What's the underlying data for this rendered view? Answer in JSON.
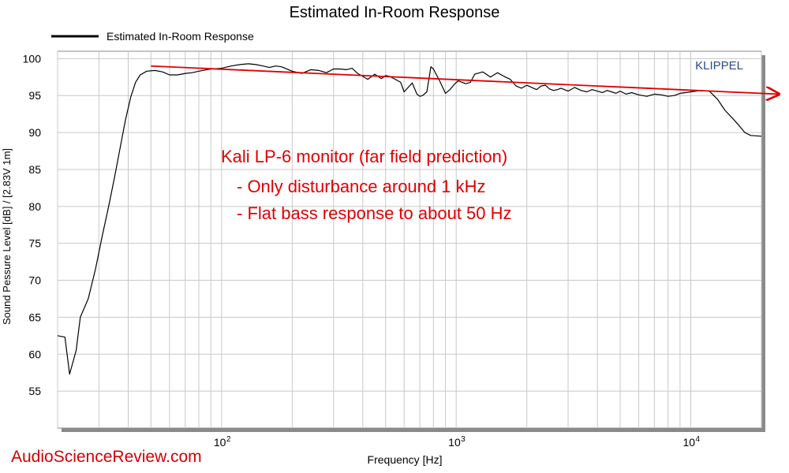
{
  "chart_data": {
    "type": "line",
    "title": "Estimated In-Room Response",
    "xlabel": "Frequency [Hz]",
    "ylabel": "Sound Pessure Level [dB]  / [2.83V 1m]",
    "x_scale": "log",
    "xlim": [
      20,
      20000
    ],
    "ylim": [
      50,
      101
    ],
    "y_ticks": [
      55,
      60,
      65,
      70,
      75,
      80,
      85,
      90,
      95,
      100
    ],
    "x_tick_labels": [
      {
        "value": 100,
        "base": "10",
        "exp": "2"
      },
      {
        "value": 1000,
        "base": "10",
        "exp": "3"
      },
      {
        "value": 10000,
        "base": "10",
        "exp": "4"
      }
    ],
    "grid": true,
    "legend_position": "top-left",
    "series": [
      {
        "name": "Estimated In-Room Response",
        "color": "#000000",
        "x": [
          20,
          21.5,
          22.5,
          24,
          25,
          27,
          29,
          31,
          33,
          35,
          37,
          39,
          41,
          43,
          45,
          48,
          52,
          56,
          60,
          65,
          70,
          75,
          80,
          90,
          100,
          110,
          120,
          130,
          140,
          150,
          160,
          170,
          180,
          200,
          220,
          240,
          260,
          280,
          300,
          320,
          340,
          360,
          380,
          400,
          420,
          450,
          480,
          500,
          520,
          550,
          580,
          600,
          620,
          650,
          680,
          700,
          720,
          750,
          780,
          800,
          850,
          900,
          940,
          980,
          1020,
          1060,
          1100,
          1150,
          1200,
          1300,
          1400,
          1500,
          1600,
          1700,
          1800,
          1900,
          2000,
          2100,
          2200,
          2300,
          2400,
          2500,
          2600,
          2700,
          2800,
          3000,
          3200,
          3400,
          3600,
          3800,
          4000,
          4200,
          4400,
          4600,
          4800,
          5000,
          5300,
          5600,
          6000,
          6500,
          7000,
          7500,
          8000,
          8500,
          9000,
          9500,
          10000,
          10500,
          11000,
          12000,
          13000,
          14000,
          15000,
          16000,
          17000,
          18000,
          20000
        ],
        "y": [
          62.5,
          62.3,
          57.3,
          60.5,
          65.0,
          67.5,
          71.5,
          76.0,
          80.0,
          84.0,
          88.0,
          91.8,
          94.8,
          96.8,
          97.8,
          98.3,
          98.4,
          98.2,
          97.8,
          97.8,
          98.0,
          98.1,
          98.3,
          98.6,
          98.7,
          99.0,
          99.2,
          99.3,
          99.2,
          99.0,
          98.8,
          99.0,
          98.9,
          98.3,
          98.0,
          98.5,
          98.4,
          98.1,
          98.6,
          98.6,
          98.5,
          98.7,
          98.0,
          97.6,
          97.2,
          97.9,
          97.3,
          97.7,
          97.6,
          97.2,
          96.8,
          95.5,
          96.0,
          96.7,
          95.2,
          94.9,
          95.0,
          95.5,
          98.9,
          98.6,
          97.0,
          95.3,
          95.8,
          96.5,
          97.0,
          96.8,
          96.6,
          96.8,
          97.9,
          98.2,
          97.5,
          98.1,
          97.6,
          97.2,
          96.3,
          96.0,
          96.4,
          96.1,
          95.8,
          96.3,
          96.4,
          95.9,
          95.7,
          95.8,
          96.0,
          95.6,
          96.1,
          95.7,
          95.5,
          95.8,
          95.6,
          95.4,
          95.7,
          95.5,
          95.3,
          95.6,
          95.2,
          95.4,
          95.1,
          94.9,
          95.2,
          95.1,
          94.9,
          95.0,
          95.3,
          95.4,
          95.5,
          95.6,
          95.7,
          95.6,
          94.5,
          93.0,
          92.0,
          91.0,
          90.0,
          89.6,
          89.5
        ]
      }
    ],
    "annotations": {
      "trend_arrow": {
        "color": "#e00000",
        "from": [
          50,
          99.0
        ],
        "to": [
          20000,
          95.3
        ]
      },
      "note_lines": [
        "Kali LP-6 monitor (far field prediction)",
        "- Only disturbance around 1 kHz",
        "- Flat bass response to about 50 Hz"
      ],
      "note_color": "#e00000"
    }
  },
  "brand_text": "KLIPPEL",
  "brand_color": "#2b4a8c",
  "watermark_text": "AudioScienceReview.com",
  "watermark_color": "#d40000"
}
